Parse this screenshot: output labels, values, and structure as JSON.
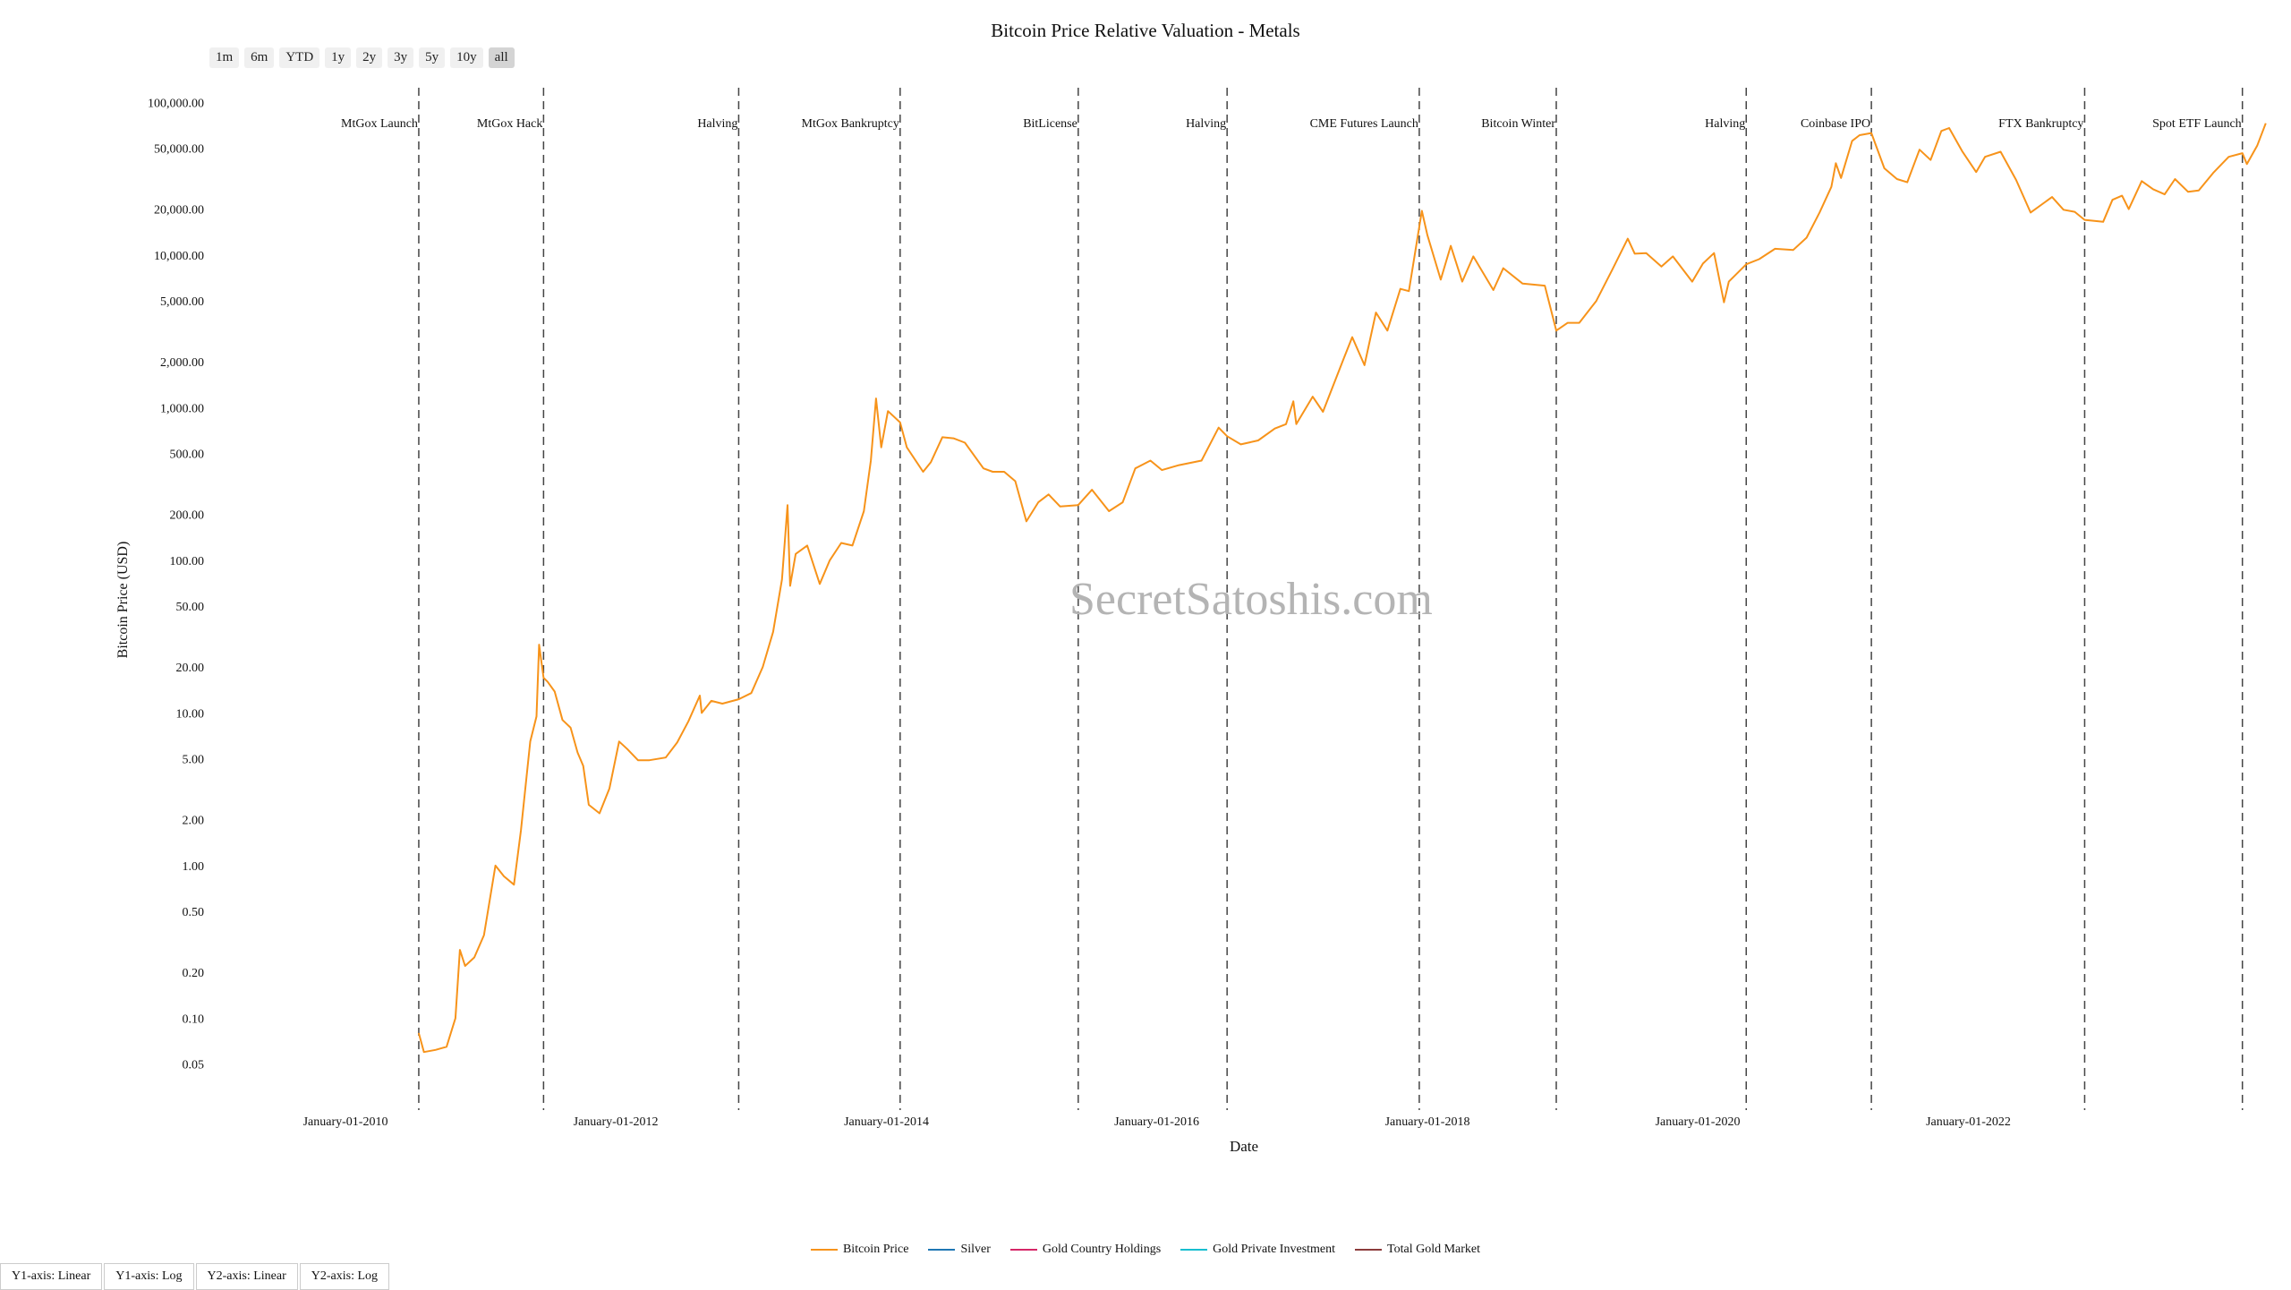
{
  "range_buttons": [
    "1m",
    "6m",
    "YTD",
    "1y",
    "2y",
    "3y",
    "5y",
    "10y",
    "all"
  ],
  "active_range": "all",
  "watermark": "SecretSatoshis.com",
  "legend": [
    {
      "label": "Bitcoin Price",
      "color": "#f7931a"
    },
    {
      "label": "Silver",
      "color": "#1f77b4"
    },
    {
      "label": "Gold Country Holdings",
      "color": "#d62768"
    },
    {
      "label": "Gold Private Investment",
      "color": "#17becf"
    },
    {
      "label": "Total Gold Market",
      "color": "#8c3b3b"
    }
  ],
  "axis_buttons": [
    "Y1-axis: Linear",
    "Y1-axis: Log",
    "Y2-axis: Linear",
    "Y2-axis: Log"
  ],
  "chart_data": {
    "type": "line",
    "title": "Bitcoin Price Relative Valuation - Metals",
    "xlabel": "Date",
    "ylabel": "Bitcoin Price (USD)",
    "yscale": "log",
    "xlim": [
      "2009-01-01",
      "2024-04-15"
    ],
    "ylim": [
      0.025,
      130000
    ],
    "x_ticks": [
      "2010-01-01",
      "2012-01-01",
      "2014-01-01",
      "2016-01-01",
      "2018-01-01",
      "2020-01-01",
      "2022-01-01"
    ],
    "x_tick_labels": [
      "January-01-2010",
      "January-01-2012",
      "January-01-2014",
      "January-01-2016",
      "January-01-2018",
      "January-01-2020",
      "January-01-2022"
    ],
    "y_ticks": [
      0.05,
      0.1,
      0.2,
      0.5,
      1,
      2,
      5,
      10,
      20,
      50,
      100,
      200,
      500,
      1000,
      2000,
      5000,
      10000,
      20000,
      50000,
      100000
    ],
    "y_tick_labels": [
      "0.05",
      "0.10",
      "0.20",
      "0.50",
      "1.00",
      "2.00",
      "5.00",
      "10.00",
      "20.00",
      "50.00",
      "100.00",
      "200.00",
      "500.00",
      "1,000.00",
      "2,000.00",
      "5,000.00",
      "10,000.00",
      "20,000.00",
      "50,000.00",
      "100,000.00"
    ],
    "grid": false,
    "legend_position": "bottom-center",
    "events": [
      {
        "date": "2010-07-18",
        "label": "MtGox Launch"
      },
      {
        "date": "2011-06-20",
        "label": "MtGox Hack"
      },
      {
        "date": "2012-11-28",
        "label": "Halving"
      },
      {
        "date": "2014-02-07",
        "label": "MtGox Bankruptcy"
      },
      {
        "date": "2015-06-03",
        "label": "BitLicense"
      },
      {
        "date": "2016-07-09",
        "label": "Halving"
      },
      {
        "date": "2017-12-10",
        "label": "CME Futures Launch"
      },
      {
        "date": "2018-12-15",
        "label": "Bitcoin Winter"
      },
      {
        "date": "2020-05-11",
        "label": "Halving"
      },
      {
        "date": "2021-04-14",
        "label": "Coinbase IPO"
      },
      {
        "date": "2022-11-11",
        "label": "FTX Bankruptcy"
      },
      {
        "date": "2024-01-11",
        "label": "Spot ETF Launch"
      }
    ],
    "series": [
      {
        "name": "Bitcoin Price",
        "color": "#f7931a",
        "points": [
          [
            "2010-07-18",
            0.08
          ],
          [
            "2010-08-01",
            0.06
          ],
          [
            "2010-09-01",
            0.062
          ],
          [
            "2010-10-01",
            0.065
          ],
          [
            "2010-10-25",
            0.1
          ],
          [
            "2010-11-06",
            0.28
          ],
          [
            "2010-11-20",
            0.22
          ],
          [
            "2010-12-15",
            0.25
          ],
          [
            "2011-01-10",
            0.35
          ],
          [
            "2011-02-10",
            1.0
          ],
          [
            "2011-03-05",
            0.85
          ],
          [
            "2011-04-01",
            0.75
          ],
          [
            "2011-04-20",
            1.7
          ],
          [
            "2011-05-15",
            6.5
          ],
          [
            "2011-06-01",
            9.5
          ],
          [
            "2011-06-08",
            28
          ],
          [
            "2011-06-20",
            17
          ],
          [
            "2011-07-01",
            16
          ],
          [
            "2011-07-20",
            13.8
          ],
          [
            "2011-08-10",
            9
          ],
          [
            "2011-09-01",
            8
          ],
          [
            "2011-09-20",
            5.5
          ],
          [
            "2011-10-05",
            4.5
          ],
          [
            "2011-10-20",
            2.5
          ],
          [
            "2011-11-18",
            2.2
          ],
          [
            "2011-12-15",
            3.2
          ],
          [
            "2012-01-10",
            6.5
          ],
          [
            "2012-02-01",
            5.8
          ],
          [
            "2012-03-01",
            4.9
          ],
          [
            "2012-04-01",
            4.9
          ],
          [
            "2012-05-15",
            5.1
          ],
          [
            "2012-06-15",
            6.4
          ],
          [
            "2012-07-15",
            8.8
          ],
          [
            "2012-08-15",
            13
          ],
          [
            "2012-08-20",
            10
          ],
          [
            "2012-09-15",
            12
          ],
          [
            "2012-10-15",
            11.5
          ],
          [
            "2012-11-28",
            12.3
          ],
          [
            "2013-01-01",
            13.5
          ],
          [
            "2013-02-01",
            20
          ],
          [
            "2013-03-01",
            34
          ],
          [
            "2013-03-25",
            75
          ],
          [
            "2013-04-09",
            230
          ],
          [
            "2013-04-16",
            68
          ],
          [
            "2013-05-01",
            110
          ],
          [
            "2013-06-01",
            125
          ],
          [
            "2013-07-05",
            70
          ],
          [
            "2013-08-01",
            100
          ],
          [
            "2013-09-01",
            130
          ],
          [
            "2013-10-01",
            125
          ],
          [
            "2013-11-01",
            210
          ],
          [
            "2013-11-20",
            450
          ],
          [
            "2013-12-04",
            1150
          ],
          [
            "2013-12-18",
            550
          ],
          [
            "2014-01-05",
            950
          ],
          [
            "2014-02-07",
            800
          ],
          [
            "2014-02-25",
            550
          ],
          [
            "2014-04-10",
            380
          ],
          [
            "2014-05-01",
            440
          ],
          [
            "2014-06-01",
            640
          ],
          [
            "2014-07-01",
            630
          ],
          [
            "2014-08-01",
            590
          ],
          [
            "2014-09-20",
            400
          ],
          [
            "2014-10-15",
            380
          ],
          [
            "2014-11-15",
            380
          ],
          [
            "2014-12-15",
            330
          ],
          [
            "2015-01-14",
            180
          ],
          [
            "2015-02-15",
            240
          ],
          [
            "2015-03-15",
            270
          ],
          [
            "2015-04-15",
            225
          ],
          [
            "2015-06-03",
            230
          ],
          [
            "2015-07-10",
            290
          ],
          [
            "2015-08-25",
            210
          ],
          [
            "2015-10-01",
            240
          ],
          [
            "2015-11-04",
            400
          ],
          [
            "2015-12-15",
            450
          ],
          [
            "2016-01-15",
            390
          ],
          [
            "2016-03-01",
            420
          ],
          [
            "2016-05-01",
            450
          ],
          [
            "2016-06-16",
            740
          ],
          [
            "2016-07-09",
            650
          ],
          [
            "2016-08-15",
            575
          ],
          [
            "2016-10-01",
            610
          ],
          [
            "2016-11-15",
            730
          ],
          [
            "2016-12-15",
            780
          ],
          [
            "2017-01-04",
            1100
          ],
          [
            "2017-01-12",
            780
          ],
          [
            "2017-02-25",
            1180
          ],
          [
            "2017-03-25",
            940
          ],
          [
            "2017-05-20",
            2100
          ],
          [
            "2017-06-12",
            2900
          ],
          [
            "2017-07-15",
            1900
          ],
          [
            "2017-08-15",
            4200
          ],
          [
            "2017-09-15",
            3200
          ],
          [
            "2017-10-20",
            6000
          ],
          [
            "2017-11-12",
            5800
          ],
          [
            "2017-12-17",
            19500
          ],
          [
            "2018-01-01",
            13500
          ],
          [
            "2018-02-06",
            6900
          ],
          [
            "2018-03-05",
            11500
          ],
          [
            "2018-04-05",
            6700
          ],
          [
            "2018-05-05",
            9800
          ],
          [
            "2018-06-28",
            5900
          ],
          [
            "2018-07-25",
            8200
          ],
          [
            "2018-09-15",
            6500
          ],
          [
            "2018-11-14",
            6300
          ],
          [
            "2018-12-15",
            3200
          ],
          [
            "2019-01-15",
            3600
          ],
          [
            "2019-02-15",
            3600
          ],
          [
            "2019-04-02",
            5000
          ],
          [
            "2019-05-15",
            8000
          ],
          [
            "2019-06-26",
            12800
          ],
          [
            "2019-07-15",
            10200
          ],
          [
            "2019-08-15",
            10300
          ],
          [
            "2019-09-25",
            8400
          ],
          [
            "2019-10-26",
            9800
          ],
          [
            "2019-12-17",
            6700
          ],
          [
            "2020-01-15",
            8800
          ],
          [
            "2020-02-14",
            10300
          ],
          [
            "2020-03-12",
            4900
          ],
          [
            "2020-03-25",
            6700
          ],
          [
            "2020-05-11",
            8700
          ],
          [
            "2020-06-15",
            9400
          ],
          [
            "2020-07-28",
            11000
          ],
          [
            "2020-09-15",
            10800
          ],
          [
            "2020-10-21",
            13000
          ],
          [
            "2020-11-25",
            19000
          ],
          [
            "2020-12-27",
            28000
          ],
          [
            "2021-01-08",
            40000
          ],
          [
            "2021-01-22",
            32000
          ],
          [
            "2021-02-21",
            56000
          ],
          [
            "2021-03-13",
            61000
          ],
          [
            "2021-04-14",
            63000
          ],
          [
            "2021-05-19",
            37000
          ],
          [
            "2021-06-22",
            31500
          ],
          [
            "2021-07-20",
            30000
          ],
          [
            "2021-08-22",
            49000
          ],
          [
            "2021-09-21",
            42000
          ],
          [
            "2021-10-20",
            65000
          ],
          [
            "2021-11-10",
            68000
          ],
          [
            "2021-12-15",
            48000
          ],
          [
            "2022-01-22",
            35000
          ],
          [
            "2022-02-15",
            44000
          ],
          [
            "2022-03-29",
            47500
          ],
          [
            "2022-05-10",
            31000
          ],
          [
            "2022-06-18",
            19000
          ],
          [
            "2022-08-15",
            24000
          ],
          [
            "2022-09-15",
            19800
          ],
          [
            "2022-10-15",
            19200
          ],
          [
            "2022-11-11",
            17000
          ],
          [
            "2022-12-31",
            16500
          ],
          [
            "2023-01-25",
            23000
          ],
          [
            "2023-02-20",
            24500
          ],
          [
            "2023-03-10",
            20000
          ],
          [
            "2023-04-14",
            30500
          ],
          [
            "2023-05-15",
            27000
          ],
          [
            "2023-06-15",
            25000
          ],
          [
            "2023-07-13",
            31500
          ],
          [
            "2023-08-17",
            26000
          ],
          [
            "2023-09-15",
            26500
          ],
          [
            "2023-10-24",
            34500
          ],
          [
            "2023-12-05",
            44000
          ],
          [
            "2024-01-11",
            46500
          ],
          [
            "2024-01-23",
            39500
          ],
          [
            "2024-02-20",
            52000
          ],
          [
            "2024-03-14",
            73000
          ]
        ]
      }
    ]
  }
}
